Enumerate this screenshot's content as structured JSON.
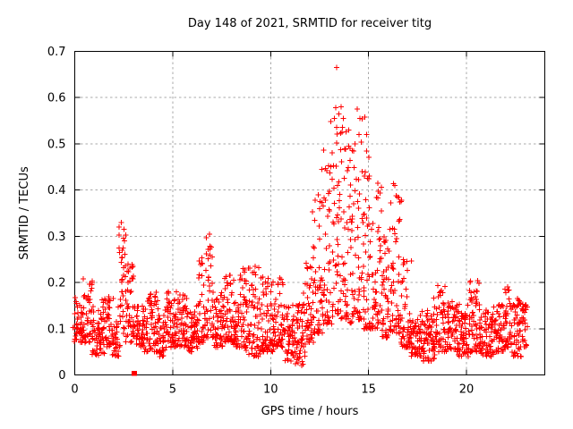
{
  "page": {
    "background": "#ffffff",
    "text_color": "#000000"
  },
  "chart_data": {
    "type": "scatter",
    "title": "Day 148 of 2021, SRMTID for receiver titg",
    "xlabel": "GPS time / hours",
    "ylabel": "SRMTID / TECUs",
    "xlim": [
      0,
      24
    ],
    "ylim": [
      0,
      0.7
    ],
    "xticks": [
      0,
      5,
      10,
      15,
      20
    ],
    "yticks": [
      0,
      0.1,
      0.2,
      0.3,
      0.4,
      0.5,
      0.6,
      0.7
    ],
    "grid": true,
    "grid_style": "dashed",
    "grid_color": "#a8a8a8",
    "axis_color": "#000000",
    "legend": "none",
    "marker": "plus",
    "marker_size": 7,
    "marker_color": "#ff0000",
    "series_name": "SRMTID",
    "sampling": {
      "t_start": 0.0,
      "t_end": 23.1,
      "points_per_hour": 100,
      "x_jitter": 0.008,
      "seed": 77
    },
    "segment_fields": [
      "t_start",
      "t_end",
      "v_min",
      "v_max",
      "shape_exponent"
    ],
    "envelope_segments": [
      [
        0.0,
        0.35,
        0.07,
        0.17,
        1.3
      ],
      [
        0.35,
        0.95,
        0.07,
        0.21,
        1.6
      ],
      [
        0.95,
        1.45,
        0.04,
        0.15,
        1.4
      ],
      [
        1.45,
        1.95,
        0.06,
        0.17,
        1.5
      ],
      [
        1.95,
        2.25,
        0.04,
        0.12,
        1.3
      ],
      [
        2.25,
        2.45,
        0.08,
        0.33,
        1.6
      ],
      [
        2.45,
        2.65,
        0.1,
        0.32,
        1.0
      ],
      [
        2.65,
        3.0,
        0.07,
        0.24,
        1.6
      ],
      [
        3.0,
        3.55,
        0.06,
        0.15,
        1.3
      ],
      [
        3.55,
        4.3,
        0.05,
        0.18,
        1.8
      ],
      [
        4.3,
        4.6,
        0.04,
        0.13,
        1.3
      ],
      [
        4.6,
        5.45,
        0.06,
        0.18,
        1.7
      ],
      [
        5.45,
        5.8,
        0.06,
        0.19,
        1.9
      ],
      [
        5.8,
        6.25,
        0.05,
        0.14,
        1.3
      ],
      [
        6.25,
        6.6,
        0.07,
        0.26,
        1.8
      ],
      [
        6.6,
        7.05,
        0.08,
        0.31,
        1.6
      ],
      [
        7.05,
        7.55,
        0.06,
        0.18,
        1.5
      ],
      [
        7.55,
        8.1,
        0.07,
        0.22,
        1.7
      ],
      [
        8.1,
        8.45,
        0.06,
        0.16,
        1.4
      ],
      [
        8.45,
        8.8,
        0.06,
        0.23,
        1.7
      ],
      [
        8.8,
        9.45,
        0.04,
        0.235,
        1.5
      ],
      [
        9.45,
        10.1,
        0.05,
        0.22,
        1.8
      ],
      [
        10.1,
        10.65,
        0.06,
        0.21,
        1.8
      ],
      [
        10.65,
        11.2,
        0.03,
        0.15,
        1.4
      ],
      [
        11.2,
        11.75,
        0.02,
        0.16,
        1.2
      ],
      [
        11.75,
        12.2,
        0.07,
        0.27,
        1.7
      ],
      [
        12.2,
        12.65,
        0.09,
        0.42,
        2.1
      ],
      [
        12.65,
        13.1,
        0.11,
        0.5,
        1.8
      ],
      [
        13.1,
        13.55,
        0.13,
        0.6,
        1.7
      ],
      [
        13.55,
        13.95,
        0.12,
        0.57,
        1.8
      ],
      [
        13.95,
        14.35,
        0.11,
        0.5,
        1.8
      ],
      [
        14.35,
        14.75,
        0.12,
        0.58,
        2.0
      ],
      [
        14.75,
        15.15,
        0.1,
        0.52,
        2.2
      ],
      [
        15.15,
        15.65,
        0.1,
        0.42,
        2.1
      ],
      [
        15.65,
        16.1,
        0.08,
        0.3,
        1.9
      ],
      [
        16.1,
        16.65,
        0.09,
        0.42,
        1.6
      ],
      [
        16.65,
        17.1,
        0.06,
        0.25,
        2.0
      ],
      [
        17.1,
        17.75,
        0.04,
        0.13,
        1.3
      ],
      [
        17.75,
        18.35,
        0.03,
        0.14,
        1.4
      ],
      [
        18.35,
        19.0,
        0.05,
        0.195,
        1.6
      ],
      [
        19.0,
        19.6,
        0.05,
        0.16,
        1.5
      ],
      [
        19.6,
        20.15,
        0.04,
        0.14,
        1.4
      ],
      [
        20.15,
        20.8,
        0.05,
        0.21,
        1.6
      ],
      [
        20.8,
        21.45,
        0.04,
        0.14,
        1.4
      ],
      [
        21.45,
        21.95,
        0.05,
        0.16,
        1.5
      ],
      [
        21.95,
        22.35,
        0.06,
        0.19,
        1.5
      ],
      [
        22.35,
        22.8,
        0.04,
        0.17,
        1.7
      ],
      [
        22.8,
        23.1,
        0.06,
        0.16,
        1.2
      ]
    ],
    "special_points": [
      [
        2.38,
        0.33
      ],
      [
        2.52,
        0.315
      ],
      [
        6.88,
        0.305
      ],
      [
        9.2,
        0.235
      ],
      [
        12.62,
        0.445
      ],
      [
        13.32,
        0.578
      ],
      [
        13.37,
        0.665
      ],
      [
        13.48,
        0.565
      ],
      [
        13.72,
        0.555
      ],
      [
        14.05,
        0.49
      ],
      [
        14.42,
        0.575
      ],
      [
        14.55,
        0.555
      ],
      [
        14.9,
        0.52
      ],
      [
        15.05,
        0.43
      ],
      [
        15.48,
        0.415
      ],
      [
        16.35,
        0.41
      ],
      [
        16.48,
        0.385
      ],
      [
        20.5,
        0.182
      ],
      [
        22.1,
        0.19
      ]
    ],
    "zero_marker": {
      "x": 3.05,
      "y": 0.004,
      "marker": "filled-square"
    }
  }
}
